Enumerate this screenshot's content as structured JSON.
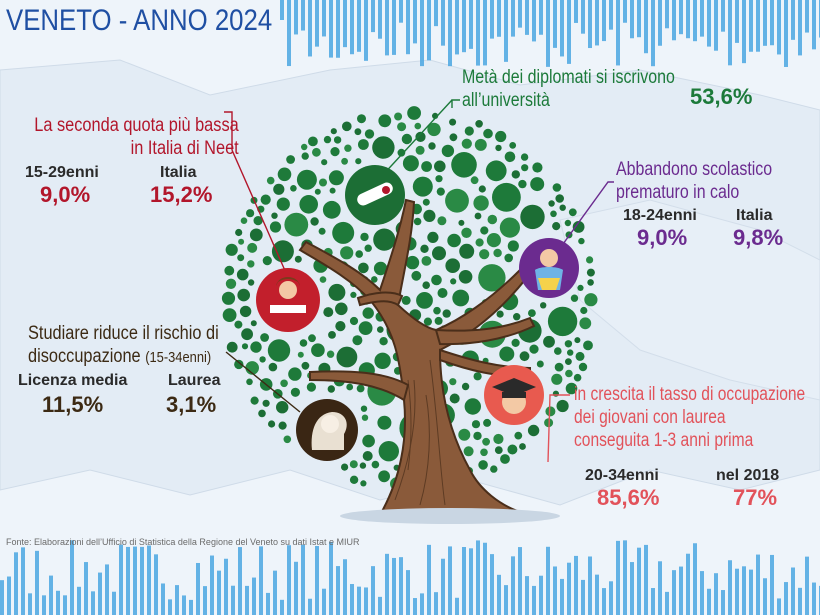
{
  "title": "VENETO - ANNO 2024",
  "colors": {
    "title_blue": "#1f4fa3",
    "bar_blue": "#4aa6e0",
    "neet_red": "#b2162b",
    "dropout_purple": "#6b2b8f",
    "university_green": "#1c7a3a",
    "unemployment_brown": "#3c2a14",
    "employment_salmon": "#e2525a",
    "tree_green": "#1e7a3a",
    "trunk_brown": "#8a5a3a"
  },
  "icons": [
    "diploma-icon",
    "student-reading-icon",
    "baby-icon",
    "graduate-icon",
    "brain-icon"
  ],
  "university": {
    "label": "Metà dei diplomati si iscrivono all’università",
    "line1": "Metà dei diplomati si iscrivono",
    "line2": "all’università",
    "value": "53,6%"
  },
  "neet": {
    "line1": "La seconda quota più bassa",
    "line2": "in Italia di Neet",
    "group_label": "15-29enni",
    "group_value": "9,0%",
    "italy_label": "Italia",
    "italy_value": "15,2%"
  },
  "dropout": {
    "line1": "Abbandono scolastico",
    "line2": "prematuro in calo",
    "group_label": "18-24enni",
    "group_value": "9,0%",
    "italy_label": "Italia",
    "italy_value": "9,8%"
  },
  "unemployment": {
    "line1": "Studiare riduce il rischio di",
    "line2_main": "disoccupazione",
    "line2_sub": "(15-34enni)",
    "a_label": "Licenza media",
    "a_value": "11,5%",
    "b_label": "Laurea",
    "b_value": "3,1%"
  },
  "employment": {
    "line1": "in crescita il tasso di occupazione",
    "line2": "dei giovani con laurea",
    "line3": "conseguita 1-3 anni prima",
    "a_label": "20-34enni",
    "a_value": "85,6%",
    "b_label": "nel 2018",
    "b_value": "77%"
  },
  "source": "Fonte: Elaborazioni dell’Ufficio di Statistica della Regione del Veneto su dati Istat e MIUR"
}
